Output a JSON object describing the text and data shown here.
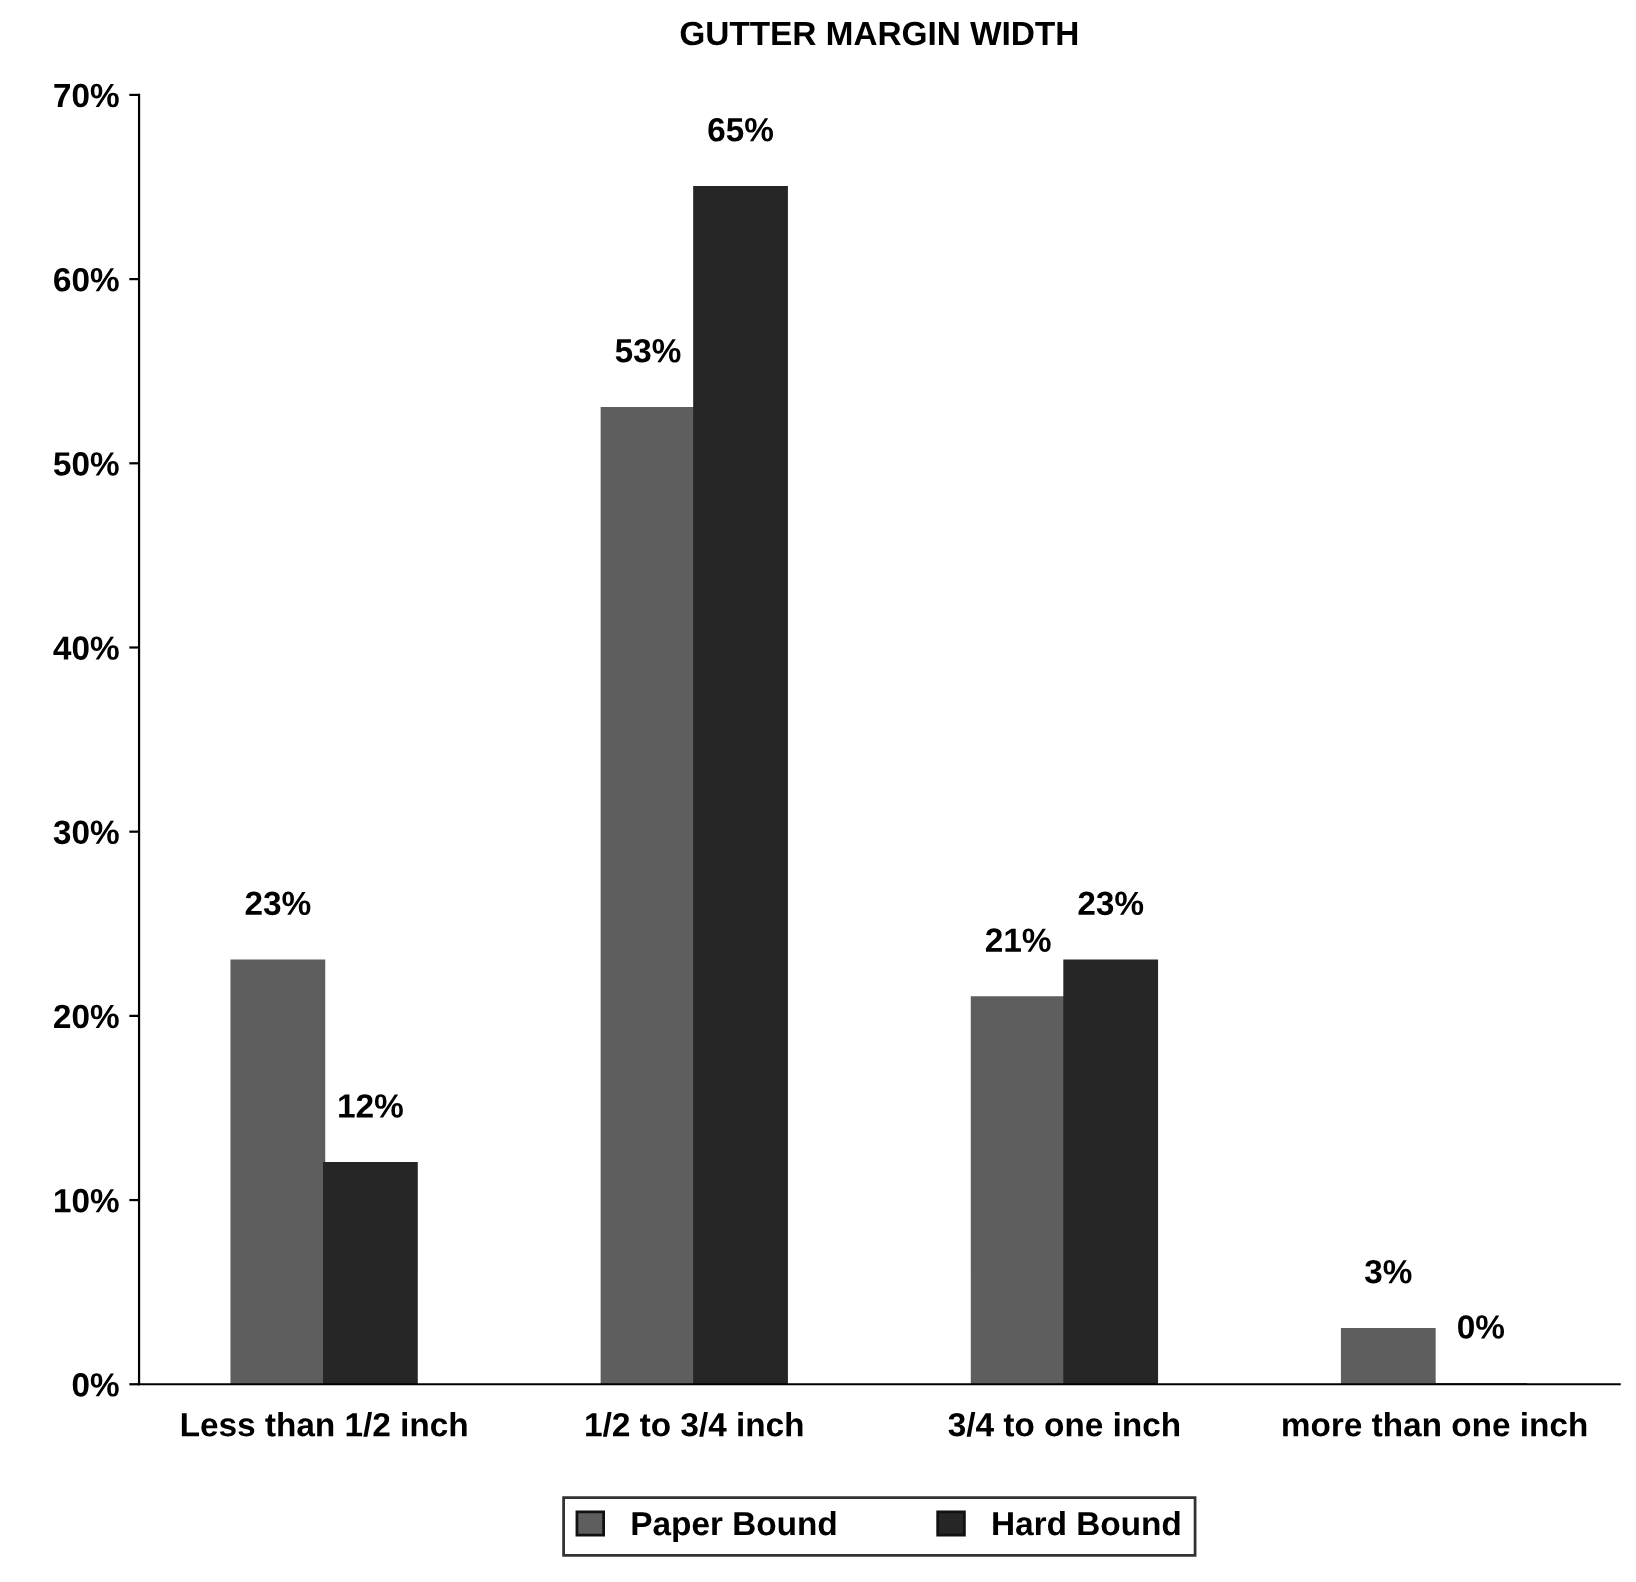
{
  "chart_data": {
    "type": "bar",
    "title": "GUTTER MARGIN WIDTH",
    "categories": [
      "Less than 1/2 inch",
      "1/2 to 3/4 inch",
      "3/4 to one inch",
      "more than one inch"
    ],
    "series": [
      {
        "name": "Paper Bound",
        "color": "#5e5e5e",
        "values": [
          23,
          53,
          21,
          3
        ],
        "value_labels": [
          "23%",
          "53%",
          "21%",
          "3%"
        ]
      },
      {
        "name": "Hard Bound",
        "color": "#262626",
        "values": [
          12,
          65,
          23,
          0
        ],
        "value_labels": [
          "12%",
          "65%",
          "23%",
          "0%"
        ]
      }
    ],
    "ylim": [
      0,
      70
    ],
    "yticks": [
      {
        "value": 0,
        "label": "0%"
      },
      {
        "value": 10,
        "label": "10%"
      },
      {
        "value": 20,
        "label": "20%"
      },
      {
        "value": 30,
        "label": "30%"
      },
      {
        "value": 40,
        "label": "40%"
      },
      {
        "value": 50,
        "label": "50%"
      },
      {
        "value": 60,
        "label": "60%"
      },
      {
        "value": 70,
        "label": "70%"
      }
    ],
    "grid": false,
    "legend": "bottom"
  }
}
